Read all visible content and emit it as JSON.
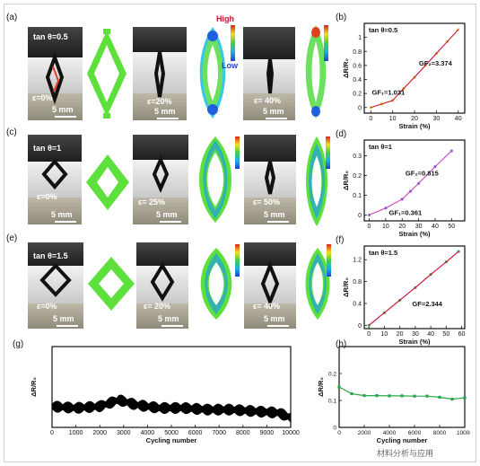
{
  "panels": {
    "a": {
      "label": "(a)",
      "tan_label": "tan θ=0.5",
      "strains": [
        "ε=0%",
        "ε=20%",
        "ε= 40%"
      ],
      "scale": "5 mm",
      "legend_high": "High",
      "legend_low": "Low"
    },
    "c": {
      "label": "(c)",
      "tan_label": "tan θ=1",
      "strains": [
        "ε=0%",
        "ε= 25%",
        "ε= 50%"
      ],
      "scale": "5 mm"
    },
    "e": {
      "label": "(e)",
      "tan_label": "tan θ=1.5",
      "strains": [
        "ε=0%",
        "ε= 20%",
        "ε= 40%"
      ],
      "scale": "5 mm"
    }
  },
  "colors": {
    "fit_line": "#c8102e",
    "data_dots": "#e0c040",
    "cycle_trace": "#000000",
    "h_series": "#2aa84a",
    "mesh_green": "#5ee03c"
  },
  "chart_data": [
    {
      "id": "b",
      "label": "(b)",
      "type": "line",
      "annotation": "tan θ=0.5",
      "xlabel": "Strain (%)",
      "ylabel": "ΔR/R₀",
      "xlim": [
        -3,
        43
      ],
      "ylim": [
        -0.08,
        1.2
      ],
      "xticks": [
        0,
        10,
        20,
        30,
        40
      ],
      "yticks": [
        0,
        0.2,
        0.4,
        0.6,
        0.8,
        1.0
      ],
      "x": [
        0,
        5,
        10,
        15,
        20,
        25,
        30,
        35,
        40
      ],
      "y": [
        0,
        0.05,
        0.1,
        0.27,
        0.43,
        0.6,
        0.77,
        0.94,
        1.11
      ],
      "gf_labels": [
        "GF₁=1.031",
        "GF₂=3.374"
      ]
    },
    {
      "id": "d",
      "label": "(d)",
      "type": "line",
      "annotation": "tan θ=1",
      "xlabel": "Strain (%)",
      "ylabel": "ΔR/R₀",
      "xlim": [
        -3,
        58
      ],
      "ylim": [
        -0.03,
        0.38
      ],
      "xticks": [
        0,
        10,
        20,
        30,
        40,
        50
      ],
      "yticks": [
        0,
        0.1,
        0.2,
        0.3
      ],
      "x": [
        0,
        10,
        20,
        25,
        30,
        40,
        50
      ],
      "y": [
        0,
        0.035,
        0.08,
        0.12,
        0.16,
        0.245,
        0.325
      ],
      "gf_labels": [
        "GF₂=0.815",
        "GF₁=0.361"
      ]
    },
    {
      "id": "f",
      "label": "(f)",
      "type": "line",
      "annotation": "tan θ=1.5",
      "xlabel": "Strain (%)",
      "ylabel": "ΔR/R₀",
      "xlim": [
        -3,
        62
      ],
      "ylim": [
        -0.06,
        1.45
      ],
      "xticks": [
        0,
        10,
        20,
        30,
        40,
        50,
        60
      ],
      "yticks": [
        0,
        0.4,
        0.8,
        1.2
      ],
      "x": [
        0,
        10,
        20,
        30,
        40,
        50,
        58
      ],
      "y": [
        0,
        0.23,
        0.46,
        0.69,
        0.93,
        1.16,
        1.35
      ],
      "gf_labels": [
        "GF=2.344"
      ]
    },
    {
      "id": "g",
      "label": "(g)",
      "type": "line",
      "xlabel": "Cycling number",
      "ylabel": "ΔR/R₀",
      "xlim": [
        0,
        10000
      ],
      "ylim": [
        0,
        0.5
      ],
      "xticks": [
        0,
        1000,
        2000,
        3000,
        4000,
        5000,
        6000,
        7000,
        8000,
        9000,
        10000
      ],
      "envelope_x": [
        0,
        1000,
        2000,
        2800,
        3500,
        4500,
        5500,
        6500,
        7500,
        8500,
        9500,
        10000
      ],
      "envelope_y": [
        0.13,
        0.12,
        0.13,
        0.17,
        0.14,
        0.12,
        0.12,
        0.11,
        0.11,
        0.1,
        0.09,
        0.06
      ]
    },
    {
      "id": "h",
      "label": "(h)",
      "type": "line",
      "xlabel": "Cycling number",
      "ylabel": "ΔR/R₀",
      "xlim": [
        0,
        10000
      ],
      "ylim": [
        0,
        0.3
      ],
      "yticks": [
        0,
        0.1,
        0.2
      ],
      "x": [
        0,
        1000,
        2000,
        3000,
        4000,
        5000,
        6000,
        7000,
        8000,
        9000,
        10000
      ],
      "y": [
        0.15,
        0.125,
        0.118,
        0.118,
        0.117,
        0.117,
        0.116,
        0.116,
        0.112,
        0.105,
        0.11
      ],
      "xticks": [
        0,
        2000,
        4000,
        6000,
        8000,
        10000
      ]
    }
  ],
  "watermark": "材料分析与应用"
}
